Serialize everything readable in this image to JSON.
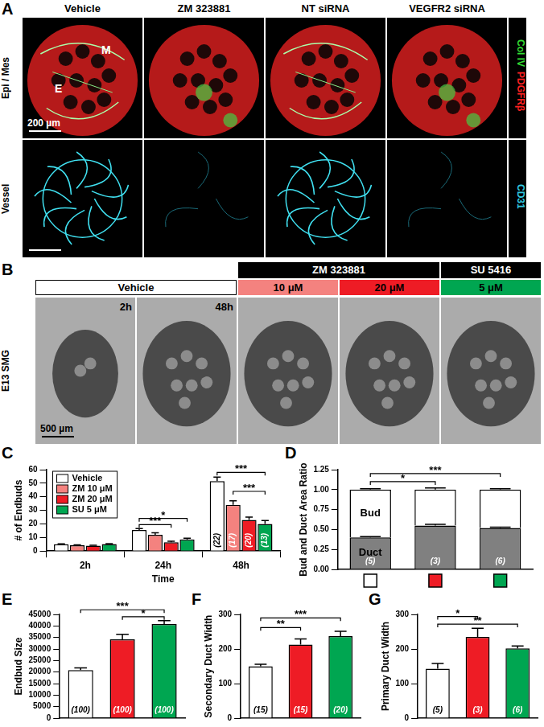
{
  "figure_panels": {
    "A": {
      "label": "A",
      "columns": [
        "Vehicle",
        "ZM 323881",
        "NT siRNA",
        "VEGFR2 siRNA"
      ],
      "rows": [
        {
          "label": "Epi / Mes",
          "channels": [
            {
              "text": "Col IV",
              "color": "#33dd33"
            },
            {
              "text": "PDGFRβ",
              "color": "#ff2020"
            }
          ]
        },
        {
          "label": "Vessel",
          "channels": [
            {
              "text": "CD31",
              "color": "#30c8e0"
            }
          ]
        }
      ],
      "image_labels": [
        "M",
        "E"
      ],
      "scale_bar": "200 µm"
    },
    "B": {
      "label": "B",
      "row_label": "E13 SMG",
      "groups": [
        {
          "name": "Vehicle",
          "columns": [
            {
              "label": "2h"
            },
            {
              "label": "48h"
            }
          ]
        },
        {
          "name": "ZM 323881",
          "columns": [
            {
              "label": "10 μM",
              "color": "#f4827f"
            },
            {
              "label": "20 μM",
              "color": "#ee1c25"
            }
          ]
        },
        {
          "name": "SU 5416",
          "columns": [
            {
              "label": "5 μM",
              "color": "#00a651"
            }
          ]
        }
      ],
      "scale_bar": "500 µm"
    }
  },
  "chart_data": [
    {
      "panel": "C",
      "type": "bar",
      "y_label": "# of Endbuds",
      "x_label": "Time",
      "categories": [
        "2h",
        "24h",
        "48h"
      ],
      "ylim": [
        0,
        60
      ],
      "yticks": [
        0,
        10,
        20,
        30,
        40,
        50,
        60
      ],
      "grid": false,
      "legend": "top-left",
      "series": [
        {
          "name": "Vehicle",
          "color": "#ffffff",
          "values": [
            5,
            15.5,
            51.5
          ],
          "errors": [
            0.3,
            1,
            3
          ],
          "n_labels": [
            null,
            null,
            "(22)"
          ]
        },
        {
          "name": "ZM 10 μM",
          "color": "#f4827f",
          "values": [
            4.3,
            12,
            34
          ],
          "errors": [
            0.3,
            1.5,
            3
          ],
          "n_labels": [
            null,
            null,
            "(17)"
          ]
        },
        {
          "name": "ZM 20 μM",
          "color": "#ee1c25",
          "values": [
            4,
            6.5,
            23
          ],
          "errors": [
            0.3,
            0.7,
            2
          ],
          "n_labels": [
            null,
            null,
            "(20)"
          ]
        },
        {
          "name": "SU 5 μM",
          "color": "#00a651",
          "values": [
            5.2,
            8.5,
            20
          ],
          "errors": [
            0.3,
            1,
            2.5
          ],
          "n_labels": [
            null,
            null,
            "(13)"
          ]
        }
      ],
      "significance": [
        {
          "category": 1,
          "from": 0,
          "to": 3,
          "y": 24,
          "text": "*"
        },
        {
          "category": 1,
          "from": 0,
          "to": 2,
          "y": 19.5,
          "text": "***"
        },
        {
          "category": 2,
          "from": 0,
          "to": 3,
          "y": 58,
          "text": "***"
        },
        {
          "category": 2,
          "from": 1,
          "to": 3,
          "y": 44,
          "text": "***"
        }
      ]
    },
    {
      "panel": "D",
      "type": "bar",
      "stacked": true,
      "y_label": "Bud and Duct Area Ratio",
      "categories": [
        null,
        null,
        null
      ],
      "colors": [
        "#ffffff",
        "#ee1c25",
        "#00a651"
      ],
      "ylim": [
        0,
        1.25
      ],
      "yticks": [
        {
          "value": 0,
          "label": "0.00"
        },
        {
          "value": 0.25,
          "label": "0.25"
        },
        {
          "value": 0.5,
          "label": "0.50"
        },
        {
          "value": 0.75,
          "label": "0.75"
        },
        {
          "value": 1,
          "label": "1.00"
        },
        {
          "value": 1.25,
          "label": "1.25"
        }
      ],
      "grid": false,
      "tick_labels": "y",
      "series": [
        {
          "name": "Duct",
          "color": "#808080",
          "values": [
            0.4,
            0.55,
            0.52
          ],
          "errors": [
            0.01,
            0.015,
            0.01
          ],
          "n_labels": [
            "(5)",
            "(3)",
            "(6)"
          ]
        },
        {
          "name": "Bud",
          "color": "#ffffff",
          "values": [
            0.6,
            0.45,
            0.48
          ],
          "errors": [
            0.01,
            0.02,
            0.01
          ]
        }
      ],
      "significance": [
        {
          "from": 0,
          "to": 1,
          "y": 1.1,
          "text": "*"
        },
        {
          "from": 0,
          "to": 2,
          "y": 1.2,
          "text": "***"
        }
      ]
    },
    {
      "panel": "E",
      "type": "bar",
      "y_label": "Endbud Size",
      "categories": [
        null,
        null,
        null
      ],
      "colors": [
        "#ffffff",
        "#ee1c25",
        "#00a651"
      ],
      "values": [
        20800,
        34200,
        40800
      ],
      "errors": [
        1000,
        2200,
        1500
      ],
      "n_labels": [
        "(100)",
        "(100)",
        "(100)"
      ],
      "ylim": [
        0,
        45000
      ],
      "yticks": [
        0,
        5000,
        10000,
        15000,
        20000,
        25000,
        30000,
        35000,
        40000,
        45000
      ],
      "grid": false,
      "tick_labels": "y",
      "significance": [
        {
          "from": 0,
          "to": 2,
          "y": 47000,
          "text": "***"
        },
        {
          "from": 1,
          "to": 2,
          "y": 44000,
          "text": "*"
        }
      ]
    },
    {
      "panel": "F",
      "type": "bar",
      "y_label": "Secondary Duct Width",
      "categories": [
        null,
        null,
        null
      ],
      "colors": [
        "#ffffff",
        "#ee1c25",
        "#00a651"
      ],
      "values": [
        150,
        213,
        237
      ],
      "errors": [
        6,
        16,
        14
      ],
      "n_labels": [
        "(15)",
        "(15)",
        "(20)"
      ],
      "ylim": [
        0,
        300
      ],
      "yticks": [
        0,
        100,
        200,
        300
      ],
      "grid": false,
      "tick_labels": "y",
      "significance": [
        {
          "from": 0,
          "to": 2,
          "y": 290,
          "text": "***"
        },
        {
          "from": 0,
          "to": 1,
          "y": 262,
          "text": "**"
        }
      ]
    },
    {
      "panel": "G",
      "type": "bar",
      "y_label": "Primary Duct Width",
      "categories": [
        null,
        null,
        null
      ],
      "colors": [
        "#ffffff",
        "#ee1c25",
        "#00a651"
      ],
      "values": [
        143,
        235,
        202
      ],
      "errors": [
        15,
        25,
        7
      ],
      "n_labels": [
        "(5)",
        "(3)",
        "(6)"
      ],
      "ylim": [
        0,
        300
      ],
      "yticks": [
        0,
        100,
        200,
        300
      ],
      "grid": false,
      "tick_labels": "y",
      "significance": [
        {
          "from": 0,
          "to": 1,
          "y": 294,
          "text": "*"
        },
        {
          "from": 0,
          "to": 2,
          "y": 272,
          "text": "**"
        }
      ]
    }
  ]
}
